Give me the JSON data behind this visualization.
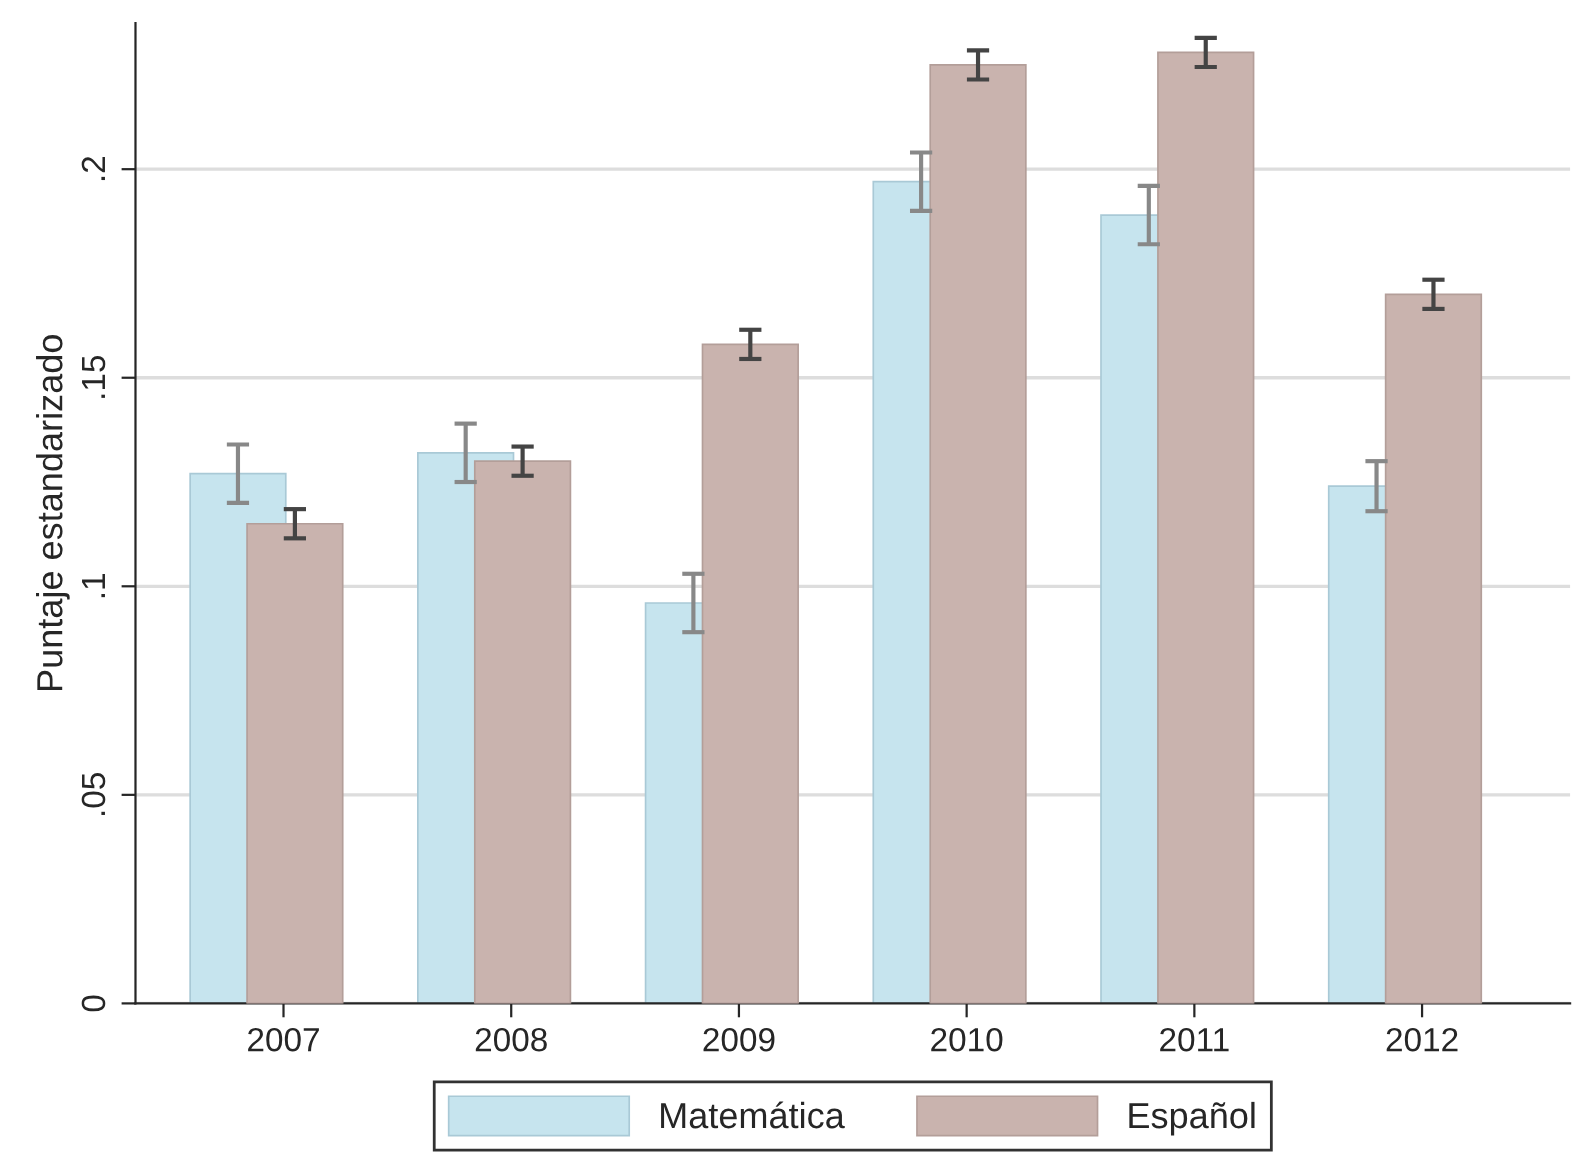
{
  "chart_data": {
    "type": "bar",
    "ylabel": "Puntaje estandarizado",
    "categories": [
      "2007",
      "2008",
      "2009",
      "2010",
      "2011",
      "2012"
    ],
    "series": [
      {
        "name": "Matemática",
        "color": "#c6e4ee",
        "values": [
          0.127,
          0.132,
          0.096,
          0.197,
          0.189,
          0.124
        ],
        "errors": [
          0.007,
          0.007,
          0.007,
          0.007,
          0.007,
          0.006
        ]
      },
      {
        "name": "Español",
        "color": "#c9b3ae",
        "values": [
          0.115,
          0.13,
          0.158,
          0.225,
          0.228,
          0.17
        ],
        "errors": [
          0.0035,
          0.0035,
          0.0035,
          0.0035,
          0.0035,
          0.0035
        ]
      }
    ],
    "ylim": [
      0,
      0.235
    ],
    "yticks": [
      {
        "value": 0,
        "label": "0"
      },
      {
        "value": 0.05,
        "label": ".05"
      },
      {
        "value": 0.1,
        "label": ".1"
      },
      {
        "value": 0.15,
        "label": ".15"
      },
      {
        "value": 0.2,
        "label": ".2"
      }
    ],
    "grid": "y",
    "legend": "bottom"
  }
}
